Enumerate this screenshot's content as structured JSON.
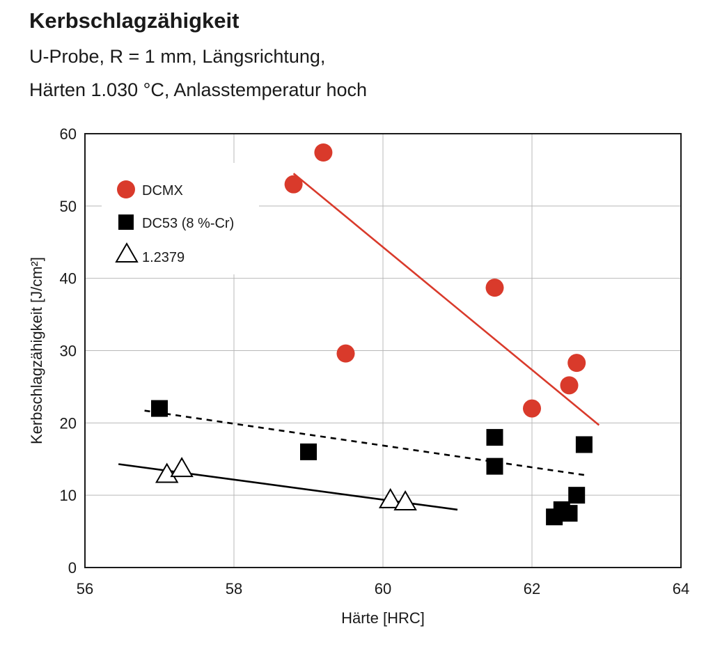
{
  "header": {
    "title": "Kerbschlagzähigkeit",
    "subtitle_line1": "U-Probe, R = 1 mm, Längsrichtung,",
    "subtitle_line2": "Härten 1.030 °C, Anlasstemperatur hoch"
  },
  "chart_data": {
    "type": "scatter",
    "xlabel": "Härte [HRC]",
    "ylabel": "Kerbschlagzähigkeit [J/cm²]",
    "xlim": [
      56,
      64
    ],
    "ylim": [
      0,
      60
    ],
    "xticks": [
      "56",
      "58",
      "60",
      "62",
      "64"
    ],
    "yticks": [
      "0",
      "10",
      "20",
      "30",
      "40",
      "50",
      "60"
    ],
    "grid": true,
    "legend_position": "top-left",
    "colors": {
      "DCMX": "#d93a2b",
      "DC53 (8 %-Cr)": "#000000",
      "1.2379": "#ffffff"
    },
    "series": [
      {
        "name": "DCMX",
        "marker": "circle",
        "points": [
          [
            58.8,
            53
          ],
          [
            59.2,
            57.4
          ],
          [
            59.5,
            29.6
          ],
          [
            61.5,
            38.7
          ],
          [
            62.0,
            22.0
          ],
          [
            62.5,
            25.2
          ],
          [
            62.6,
            28.3
          ]
        ],
        "trend": {
          "style": "solid",
          "from": [
            58.8,
            54.5
          ],
          "to": [
            62.9,
            19.7
          ]
        }
      },
      {
        "name": "DC53 (8 %-Cr)",
        "marker": "square",
        "points": [
          [
            57.0,
            22.0
          ],
          [
            59.0,
            16.0
          ],
          [
            61.5,
            18.0
          ],
          [
            61.5,
            14.0
          ],
          [
            62.7,
            17.0
          ],
          [
            62.6,
            10.0
          ],
          [
            62.4,
            8.0
          ],
          [
            62.5,
            7.5
          ],
          [
            62.3,
            7.0
          ]
        ],
        "trend": {
          "style": "dashed",
          "from": [
            56.8,
            21.7
          ],
          "to": [
            62.7,
            12.8
          ]
        }
      },
      {
        "name": "1.2379",
        "marker": "triangle",
        "points": [
          [
            57.1,
            12.8
          ],
          [
            57.3,
            13.6
          ],
          [
            60.1,
            9.3
          ],
          [
            60.3,
            9.0
          ]
        ],
        "trend": {
          "style": "solid",
          "from": [
            56.45,
            14.3
          ],
          "to": [
            61.0,
            8.0
          ]
        }
      }
    ]
  }
}
